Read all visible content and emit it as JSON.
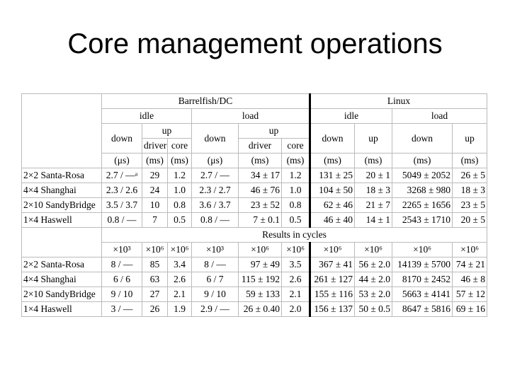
{
  "title": "Core management operations",
  "table": {
    "group_header": [
      "Barrelfish/DC",
      "Linux"
    ],
    "state_header": [
      "idle",
      "load",
      "idle",
      "load"
    ],
    "op_header": [
      "down",
      "up",
      "down",
      "up",
      "down",
      "up",
      "down",
      "up"
    ],
    "sub_header": [
      "driver",
      "core",
      "driver",
      "core"
    ],
    "units": [
      "(μs)",
      "(ms)",
      "(ms)",
      "(μs)",
      "(ms)",
      "(ms)",
      "(ms)",
      "(ms)",
      "(ms)",
      "(ms)"
    ],
    "rows": [
      [
        "2×2 Santa-Rosa",
        "2.7 / —ᵃ",
        "29",
        "1.2",
        "2.7 / —",
        "34 ± 17",
        "1.2",
        "131 ± 25",
        "20 ± 1",
        "5049 ± 2052",
        "26 ± 5"
      ],
      [
        "4×4 Shanghai",
        "2.3 / 2.6",
        "24",
        "1.0",
        "2.3 / 2.7",
        "46 ± 76",
        "1.0",
        "104 ± 50",
        "18 ± 3",
        "3268 ± 980",
        "18 ± 3"
      ],
      [
        "2×10 SandyBridge",
        "3.5 / 3.7",
        "10",
        "0.8",
        "3.6 / 3.7",
        "23 ± 52",
        "0.8",
        "62 ± 46",
        "21 ± 7",
        "2265 ± 1656",
        "23 ± 5"
      ],
      [
        "1×4 Haswell",
        "0.8 / —",
        "7",
        "0.5",
        "0.8 / —",
        "7 ± 0.1",
        "0.5",
        "46 ± 40",
        "14 ± 1",
        "2543 ± 1710",
        "20 ± 5"
      ]
    ],
    "section": "Results in cycles",
    "cycle_units": [
      "×10³",
      "×10⁶",
      "×10⁶",
      "×10³",
      "×10⁶",
      "×10⁶",
      "×10⁶",
      "×10⁶",
      "×10⁶",
      "×10⁶"
    ],
    "cycle_rows": [
      [
        "2×2 Santa-Rosa",
        "8 / —",
        "85",
        "3.4",
        "8 / —",
        "97 ± 49",
        "3.5",
        "367 ± 41",
        "56 ± 2.0",
        "14139 ± 5700",
        "74 ± 21"
      ],
      [
        "4×4 Shanghai",
        "6 / 6",
        "63",
        "2.6",
        "6 / 7",
        "115 ± 192",
        "2.6",
        "261 ± 127",
        "44 ± 2.0",
        "8170 ± 2452",
        "46 ± 8"
      ],
      [
        "2×10 SandyBridge",
        "9 / 10",
        "27",
        "2.1",
        "9 / 10",
        "59 ± 133",
        "2.1",
        "155 ± 116",
        "53 ± 2.0",
        "5663 ± 4141",
        "57 ± 12"
      ],
      [
        "1×4 Haswell",
        "3 / —",
        "26",
        "1.9",
        "2.9 / —",
        "26 ± 0.40",
        "2.0",
        "156 ± 137",
        "50 ± 0.5",
        "8647 ± 5816",
        "69 ± 16"
      ]
    ]
  }
}
